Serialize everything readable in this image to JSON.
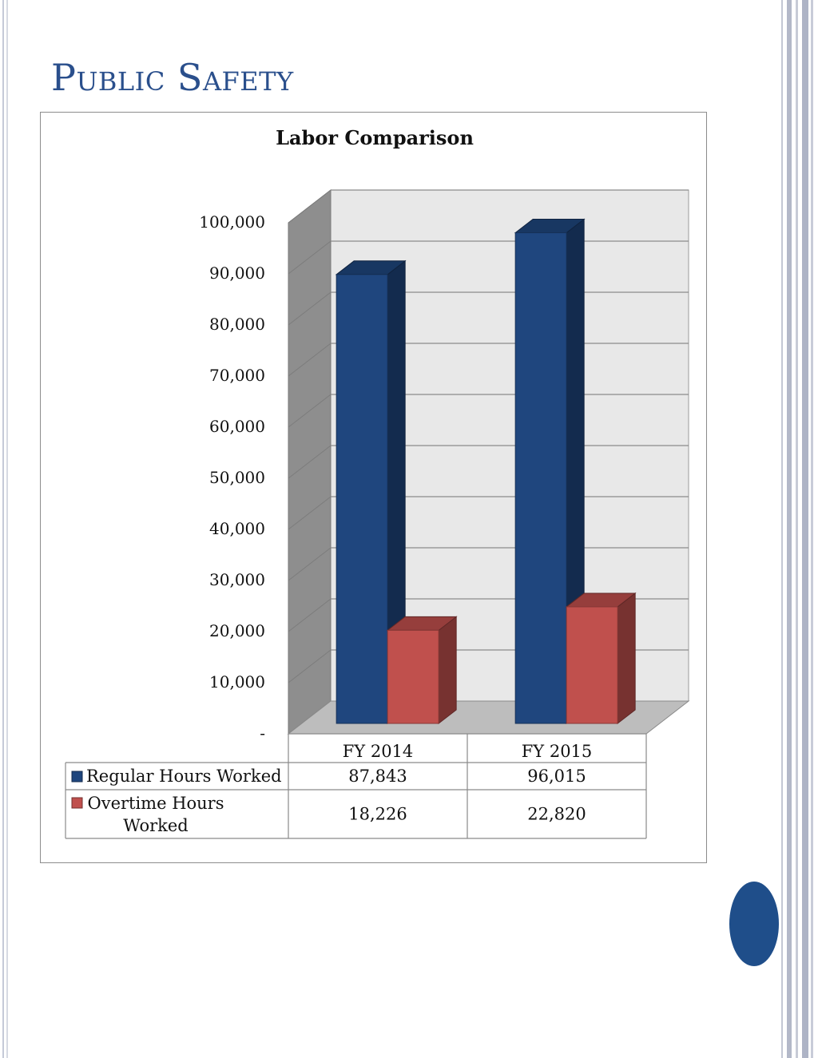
{
  "page": {
    "title": "Public Safety",
    "colors": {
      "title": "#2a4f8c",
      "marker": "#1f4e8a"
    }
  },
  "chart_data": {
    "type": "bar",
    "title": "Labor Comparison",
    "categories": [
      "FY 2014",
      "FY 2015"
    ],
    "series": [
      {
        "name": "Regular Hours Worked",
        "values": [
          87843,
          96015
        ],
        "display": [
          "87,843",
          "96,015"
        ],
        "color": "#1f467e"
      },
      {
        "name": "Overtime Hours Worked",
        "values": [
          18226,
          22820
        ],
        "display": [
          "18,226",
          "22,820"
        ],
        "color": "#c0504d"
      }
    ],
    "ylim": [
      0,
      100000
    ],
    "yticks": [
      0,
      10000,
      20000,
      30000,
      40000,
      50000,
      60000,
      70000,
      80000,
      90000,
      100000
    ],
    "ytick_labels": [
      "-",
      "10,000",
      "20,000",
      "30,000",
      "40,000",
      "50,000",
      "60,000",
      "70,000",
      "80,000",
      "90,000",
      "100,000"
    ],
    "grid": true,
    "style": "3d-clustered-column",
    "legend": "data-table"
  }
}
